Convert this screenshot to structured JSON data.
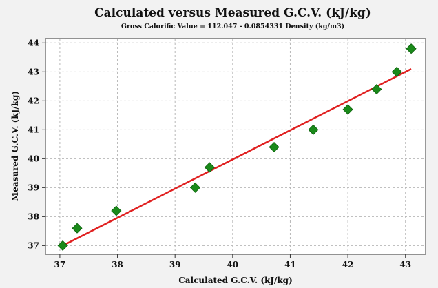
{
  "chart_data": {
    "type": "scatter",
    "title": "Calculated versus Measured G.C.V. (kJ/kg)",
    "subtitle": "Gross Calorific Value = 112.047 - 0.0854331 Density (kg/m3)",
    "xlabel": "Calculated G.C.V. (kJ/kg)",
    "ylabel": "Measured G.C.V. (kJ/kg)",
    "xlim": [
      36.75,
      43.35
    ],
    "ylim": [
      36.7,
      44.15
    ],
    "xticks": [
      37,
      38,
      39,
      40,
      41,
      42,
      43
    ],
    "yticks": [
      37,
      38,
      39,
      40,
      41,
      42,
      43,
      44
    ],
    "grid": true,
    "legend": "none",
    "points": [
      {
        "x": 37.05,
        "y": 37.0
      },
      {
        "x": 37.3,
        "y": 37.6
      },
      {
        "x": 37.98,
        "y": 38.2
      },
      {
        "x": 39.35,
        "y": 39.0
      },
      {
        "x": 39.6,
        "y": 39.7
      },
      {
        "x": 40.72,
        "y": 40.4
      },
      {
        "x": 41.4,
        "y": 41.0
      },
      {
        "x": 42.0,
        "y": 41.7
      },
      {
        "x": 42.5,
        "y": 42.4
      },
      {
        "x": 42.85,
        "y": 43.0
      },
      {
        "x": 43.1,
        "y": 43.8
      }
    ],
    "fit_line": {
      "x": [
        37.05,
        43.1
      ],
      "y": [
        37.0,
        43.1
      ]
    },
    "colors": {
      "marker": "#1a8a1a",
      "marker_stroke": "#0b5e0b",
      "fit_line": "#e02020",
      "grid": "#b8b8b8",
      "plot_background": "#ffffff",
      "figure_background": "#f2f2f2"
    }
  }
}
